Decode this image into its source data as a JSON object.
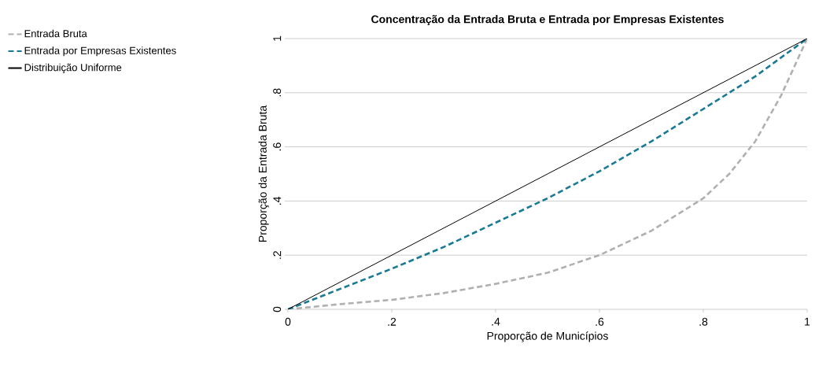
{
  "chart_data": {
    "type": "line",
    "title": "Concentração da Entrada Bruta e Entrada por Empresas Existentes",
    "xlabel": "Proporção de Municípios",
    "ylabel": "Proporção da Entrada Bruta",
    "series": [
      {
        "name": "Entrada Bruta",
        "color": "#b0b0b0",
        "line_style": "dashed",
        "x": [
          0,
          0.1,
          0.2,
          0.3,
          0.4,
          0.5,
          0.6,
          0.7,
          0.8,
          0.85,
          0.9,
          0.95,
          1
        ],
        "values": [
          0,
          0.019,
          0.035,
          0.06,
          0.094,
          0.135,
          0.2,
          0.29,
          0.41,
          0.5,
          0.62,
          0.79,
          1
        ]
      },
      {
        "name": "Entrada por Empresas Existentes",
        "color": "#1a7a96",
        "line_style": "dashed",
        "x": [
          0,
          0.1,
          0.2,
          0.3,
          0.4,
          0.5,
          0.6,
          0.7,
          0.8,
          0.9,
          1
        ],
        "values": [
          0,
          0.075,
          0.15,
          0.23,
          0.32,
          0.41,
          0.51,
          0.62,
          0.74,
          0.86,
          1
        ]
      },
      {
        "name": "Distribuição Uniforme",
        "color": "#000000",
        "line_style": "solid",
        "x": [
          0,
          1
        ],
        "values": [
          0,
          1
        ]
      }
    ],
    "xlim": [
      0,
      1
    ],
    "ylim": [
      0,
      1
    ],
    "xticks": [
      {
        "value": 0,
        "label": "0"
      },
      {
        "value": 0.2,
        "label": ".2"
      },
      {
        "value": 0.4,
        "label": ".4"
      },
      {
        "value": 0.6,
        "label": ".6"
      },
      {
        "value": 0.8,
        "label": ".8"
      },
      {
        "value": 1,
        "label": "1"
      }
    ],
    "yticks": [
      {
        "value": 0,
        "label": "0"
      },
      {
        "value": 0.2,
        "label": ".2"
      },
      {
        "value": 0.4,
        "label": ".4"
      },
      {
        "value": 0.6,
        "label": ".6"
      },
      {
        "value": 0.8,
        "label": ".8"
      },
      {
        "value": 1,
        "label": "1"
      }
    ],
    "grid": "y",
    "legend": "top left",
    "marker": "none"
  }
}
